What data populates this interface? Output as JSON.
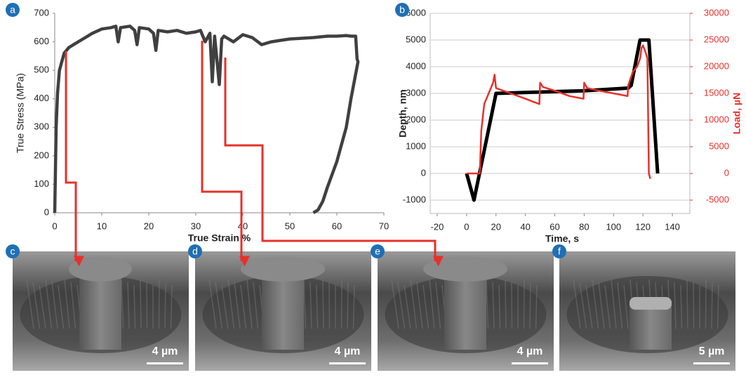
{
  "chart_data": [
    {
      "type": "line",
      "xlabel": "True Strain %",
      "ylabel": "True Stress (MPa)",
      "xlim": [
        0,
        70
      ],
      "xticks": [
        0,
        10,
        20,
        30,
        40,
        50,
        60,
        70
      ],
      "ylim": [
        0,
        700
      ],
      "yticks": [
        0,
        100,
        200,
        300,
        400,
        500,
        600,
        700
      ],
      "series": [
        {
          "color": "#404040",
          "x": [
            0,
            0.3,
            0.6,
            1,
            2,
            3,
            4,
            6,
            8,
            10,
            12,
            13,
            13.5,
            14,
            16,
            17,
            17.5,
            18,
            20,
            21,
            21.5,
            22,
            24,
            26,
            28,
            30,
            31,
            32,
            33,
            33.5,
            34,
            35,
            35.5,
            36,
            38,
            40,
            42,
            44,
            46,
            48,
            50,
            52,
            55,
            58,
            60,
            62,
            63,
            64,
            64.3,
            64.5,
            63,
            62,
            60,
            58,
            57,
            56,
            55
          ],
          "values": [
            0,
            300,
            420,
            500,
            560,
            580,
            590,
            610,
            630,
            645,
            650,
            655,
            600,
            650,
            655,
            640,
            590,
            650,
            645,
            630,
            570,
            640,
            635,
            640,
            630,
            635,
            640,
            600,
            630,
            460,
            620,
            450,
            610,
            620,
            600,
            625,
            615,
            590,
            600,
            605,
            610,
            612,
            615,
            620,
            620,
            622,
            620,
            620,
            540,
            530,
            400,
            300,
            180,
            90,
            40,
            10,
            0
          ]
        }
      ]
    },
    {
      "type": "line",
      "xlabel": "Time, s",
      "ylabel": "Depth, nm",
      "y2label": "Load, µN",
      "xlim": [
        -20,
        150
      ],
      "xticks": [
        -20,
        0,
        20,
        40,
        60,
        80,
        100,
        120,
        140
      ],
      "ylim": [
        -1500,
        6000
      ],
      "yticks": [
        -1000,
        0,
        1000,
        2000,
        3000,
        4000,
        5000,
        6000
      ],
      "y2lim": [
        -7500,
        30000
      ],
      "y2ticks": [
        -5000,
        0,
        5000,
        10000,
        15000,
        20000,
        25000,
        30000
      ],
      "grid": true,
      "series": [
        {
          "color": "#000000",
          "x": [
            0,
            5,
            20,
            50,
            80,
            110,
            112,
            118,
            124,
            130
          ],
          "values": [
            0,
            -1000,
            3000,
            3050,
            3100,
            3200,
            3300,
            5000,
            5000,
            0
          ]
        },
        {
          "color": "#e8302a",
          "axis": "y2",
          "x": [
            0,
            9,
            10,
            12,
            15,
            18,
            19,
            20,
            30,
            40,
            49.5,
            50,
            52,
            60,
            70,
            79.5,
            80,
            82,
            90,
            100,
            109.5,
            110,
            113,
            116,
            118,
            119,
            120,
            122,
            123,
            124,
            125
          ],
          "values": [
            0,
            0,
            8000,
            13000,
            15000,
            17000,
            18500,
            16000,
            15000,
            14000,
            13000,
            17000,
            16200,
            15500,
            14500,
            14000,
            17000,
            16000,
            15500,
            15000,
            14500,
            16500,
            19000,
            20000,
            21500,
            23500,
            24000,
            22500,
            21500,
            0,
            -1000
          ]
        }
      ]
    }
  ],
  "panel_labels": [
    "a",
    "b"
  ],
  "images": [
    {
      "label": "c",
      "scale_bar": "4 µm"
    },
    {
      "label": "d",
      "scale_bar": "4 µm"
    },
    {
      "label": "e",
      "scale_bar": "4 µm"
    },
    {
      "label": "f",
      "scale_bar": "5 µm"
    }
  ]
}
